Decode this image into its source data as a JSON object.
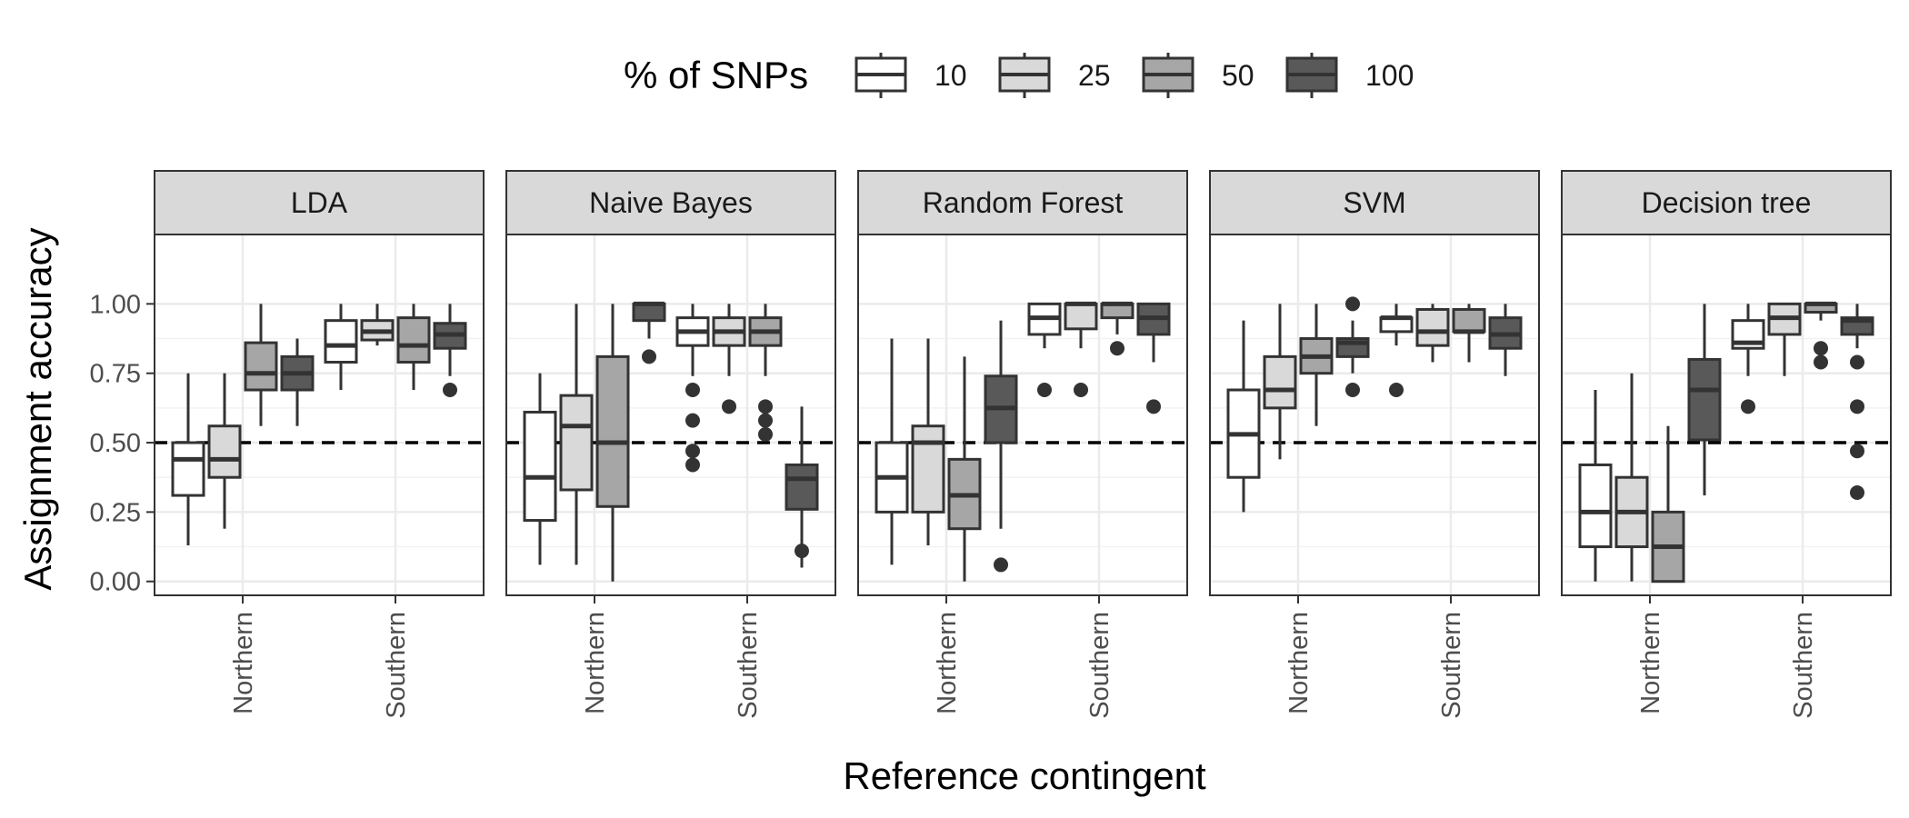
{
  "chart_data": {
    "type": "boxplot",
    "xlabel": "Reference contingent",
    "ylabel": "Assignment accuracy",
    "ylim": [
      -0.05,
      1.25
    ],
    "yticks": [
      "0.00",
      "0.25",
      "0.50",
      "0.75",
      "1.00"
    ],
    "ytick_values": [
      0,
      0.25,
      0.5,
      0.75,
      1.0
    ],
    "categories": [
      "Northern",
      "Southern"
    ],
    "reference_line": 0.5,
    "grid": true,
    "legend": {
      "title": "% of SNPs",
      "position": "top",
      "groups": [
        "10",
        "25",
        "50",
        "100"
      ],
      "colors": [
        "#ffffff",
        "#d9d9d9",
        "#a6a6a6",
        "#595959"
      ]
    },
    "panels": [
      {
        "name": "LDA",
        "boxes": {
          "Northern": [
            {
              "whislo": 0.13,
              "q1": 0.31,
              "med": 0.44,
              "q3": 0.5,
              "whishi": 0.75,
              "fliers": []
            },
            {
              "whislo": 0.19,
              "q1": 0.375,
              "med": 0.44,
              "q3": 0.56,
              "whishi": 0.75,
              "fliers": []
            },
            {
              "whislo": 0.56,
              "q1": 0.69,
              "med": 0.75,
              "q3": 0.86,
              "whishi": 1.0,
              "fliers": []
            },
            {
              "whislo": 0.56,
              "q1": 0.69,
              "med": 0.75,
              "q3": 0.81,
              "whishi": 0.875,
              "fliers": []
            }
          ],
          "Southern": [
            {
              "whislo": 0.69,
              "q1": 0.79,
              "med": 0.85,
              "q3": 0.94,
              "whishi": 1.0,
              "fliers": []
            },
            {
              "whislo": 0.85,
              "q1": 0.87,
              "med": 0.9,
              "q3": 0.94,
              "whishi": 1.0,
              "fliers": []
            },
            {
              "whislo": 0.69,
              "q1": 0.79,
              "med": 0.85,
              "q3": 0.95,
              "whishi": 1.0,
              "fliers": []
            },
            {
              "whislo": 0.74,
              "q1": 0.84,
              "med": 0.89,
              "q3": 0.93,
              "whishi": 1.0,
              "fliers": [
                0.69
              ]
            }
          ]
        }
      },
      {
        "name": "Naive Bayes",
        "boxes": {
          "Northern": [
            {
              "whislo": 0.06,
              "q1": 0.22,
              "med": 0.375,
              "q3": 0.61,
              "whishi": 0.75,
              "fliers": []
            },
            {
              "whislo": 0.06,
              "q1": 0.33,
              "med": 0.56,
              "q3": 0.67,
              "whishi": 1.0,
              "fliers": []
            },
            {
              "whislo": 0.0,
              "q1": 0.27,
              "med": 0.5,
              "q3": 0.81,
              "whishi": 1.0,
              "fliers": []
            },
            {
              "whislo": 0.875,
              "q1": 0.94,
              "med": 1.0,
              "q3": 1.0,
              "whishi": 1.0,
              "fliers": [
                0.81
              ]
            }
          ],
          "Southern": [
            {
              "whislo": 0.74,
              "q1": 0.85,
              "med": 0.9,
              "q3": 0.95,
              "whishi": 1.0,
              "fliers": [
                0.69,
                0.58,
                0.47,
                0.42
              ]
            },
            {
              "whislo": 0.74,
              "q1": 0.85,
              "med": 0.9,
              "q3": 0.95,
              "whishi": 1.0,
              "fliers": [
                0.63
              ]
            },
            {
              "whislo": 0.74,
              "q1": 0.85,
              "med": 0.9,
              "q3": 0.95,
              "whishi": 1.0,
              "fliers": [
                0.63,
                0.58,
                0.53
              ]
            },
            {
              "whislo": 0.05,
              "q1": 0.26,
              "med": 0.37,
              "q3": 0.42,
              "whishi": 0.63,
              "fliers": [
                0.11
              ]
            }
          ]
        }
      },
      {
        "name": "Random Forest",
        "boxes": {
          "Northern": [
            {
              "whislo": 0.06,
              "q1": 0.25,
              "med": 0.375,
              "q3": 0.5,
              "whishi": 0.875,
              "fliers": []
            },
            {
              "whislo": 0.13,
              "q1": 0.25,
              "med": 0.5,
              "q3": 0.56,
              "whishi": 0.875,
              "fliers": []
            },
            {
              "whislo": 0.0,
              "q1": 0.19,
              "med": 0.31,
              "q3": 0.44,
              "whishi": 0.81,
              "fliers": []
            },
            {
              "whislo": 0.19,
              "q1": 0.5,
              "med": 0.625,
              "q3": 0.74,
              "whishi": 0.94,
              "fliers": [
                0.06
              ]
            }
          ],
          "Southern": [
            {
              "whislo": 0.84,
              "q1": 0.89,
              "med": 0.95,
              "q3": 1.0,
              "whishi": 1.0,
              "fliers": [
                0.69
              ]
            },
            {
              "whislo": 0.84,
              "q1": 0.91,
              "med": 1.0,
              "q3": 1.0,
              "whishi": 1.0,
              "fliers": [
                0.69
              ]
            },
            {
              "whislo": 0.89,
              "q1": 0.95,
              "med": 1.0,
              "q3": 1.0,
              "whishi": 1.0,
              "fliers": [
                0.84
              ]
            },
            {
              "whislo": 0.79,
              "q1": 0.89,
              "med": 0.95,
              "q3": 1.0,
              "whishi": 1.0,
              "fliers": [
                0.63
              ]
            }
          ]
        }
      },
      {
        "name": "SVM",
        "boxes": {
          "Northern": [
            {
              "whislo": 0.25,
              "q1": 0.375,
              "med": 0.53,
              "q3": 0.69,
              "whishi": 0.94,
              "fliers": []
            },
            {
              "whislo": 0.44,
              "q1": 0.625,
              "med": 0.69,
              "q3": 0.81,
              "whishi": 1.0,
              "fliers": []
            },
            {
              "whislo": 0.56,
              "q1": 0.75,
              "med": 0.81,
              "q3": 0.875,
              "whishi": 1.0,
              "fliers": []
            },
            {
              "whislo": 0.75,
              "q1": 0.81,
              "med": 0.86,
              "q3": 0.875,
              "whishi": 0.94,
              "fliers": [
                1.0,
                0.69
              ]
            }
          ],
          "Southern": [
            {
              "whislo": 0.85,
              "q1": 0.9,
              "med": 0.95,
              "q3": 0.95,
              "whishi": 1.0,
              "fliers": [
                0.69
              ]
            },
            {
              "whislo": 0.79,
              "q1": 0.85,
              "med": 0.9,
              "q3": 0.98,
              "whishi": 1.0,
              "fliers": []
            },
            {
              "whislo": 0.79,
              "q1": 0.9,
              "med": 0.9,
              "q3": 0.98,
              "whishi": 1.0,
              "fliers": []
            },
            {
              "whislo": 0.74,
              "q1": 0.84,
              "med": 0.89,
              "q3": 0.95,
              "whishi": 1.0,
              "fliers": []
            }
          ]
        }
      },
      {
        "name": "Decision tree",
        "boxes": {
          "Northern": [
            {
              "whislo": 0.0,
              "q1": 0.125,
              "med": 0.25,
              "q3": 0.42,
              "whishi": 0.69,
              "fliers": []
            },
            {
              "whislo": 0.0,
              "q1": 0.125,
              "med": 0.25,
              "q3": 0.375,
              "whishi": 0.75,
              "fliers": []
            },
            {
              "whislo": 0.0,
              "q1": 0.0,
              "med": 0.125,
              "q3": 0.25,
              "whishi": 0.56,
              "fliers": []
            },
            {
              "whislo": 0.31,
              "q1": 0.51,
              "med": 0.69,
              "q3": 0.8,
              "whishi": 1.0,
              "fliers": []
            }
          ],
          "Southern": [
            {
              "whislo": 0.74,
              "q1": 0.84,
              "med": 0.86,
              "q3": 0.94,
              "whishi": 1.0,
              "fliers": [
                0.63
              ]
            },
            {
              "whislo": 0.74,
              "q1": 0.89,
              "med": 0.95,
              "q3": 1.0,
              "whishi": 1.0,
              "fliers": []
            },
            {
              "whislo": 0.94,
              "q1": 0.97,
              "med": 1.0,
              "q3": 1.0,
              "whishi": 1.0,
              "fliers": [
                0.84,
                0.79
              ]
            },
            {
              "whislo": 0.84,
              "q1": 0.89,
              "med": 0.94,
              "q3": 0.95,
              "whishi": 1.0,
              "fliers": [
                0.79,
                0.63,
                0.47,
                0.32
              ]
            }
          ]
        }
      }
    ]
  }
}
